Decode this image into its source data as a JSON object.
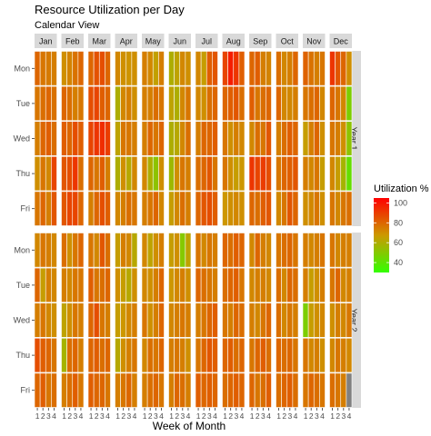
{
  "chart_data": {
    "type": "heatmap",
    "title": "Resource Utilization per Day",
    "subtitle": "Calendar View",
    "xlabel": "Week of Month",
    "ylabel": "",
    "months": [
      "Jan",
      "Feb",
      "Mar",
      "Apr",
      "May",
      "Jun",
      "Jul",
      "Aug",
      "Sep",
      "Oct",
      "Nov",
      "Dec"
    ],
    "weekdays": [
      "Mon",
      "Tue",
      "Wed",
      "Thu",
      "Fri"
    ],
    "weeks": [
      "1",
      "2",
      "3",
      "4"
    ],
    "facets": [
      "Year 1",
      "Year 2"
    ],
    "legend": {
      "title": "Utilization %",
      "position": "right",
      "range": [
        30,
        105
      ],
      "ticks": [
        40,
        60,
        80,
        100
      ],
      "low_color": "#33ff00",
      "mid_color": "#cc9900",
      "high_color": "#ff0000"
    },
    "na_color": "#808080",
    "grid": false,
    "values_note": "values[year][weekday][month][week], utilization %, estimated from fill color",
    "values": [
      [
        [
          [
            80,
            76,
            75,
            74
          ],
          [
            70,
            73,
            77,
            80
          ],
          [
            80,
            85,
            86,
            80
          ],
          [
            72,
            70,
            69,
            70
          ],
          [
            74,
            72,
            65,
            74
          ],
          [
            60,
            64,
            72,
            70
          ],
          [
            72,
            66,
            82,
            84
          ],
          [
            88,
            98,
            92,
            82
          ],
          [
            80,
            82,
            74,
            73
          ],
          [
            78,
            72,
            74,
            80
          ],
          [
            81,
            77,
            74,
            76
          ],
          [
            92,
            84,
            80,
            70
          ]
        ],
        [
          [
            76,
            78,
            80,
            77
          ],
          [
            80,
            78,
            74,
            76
          ],
          [
            86,
            88,
            82,
            80
          ],
          [
            60,
            72,
            74,
            70
          ],
          [
            74,
            74,
            78,
            76
          ],
          [
            64,
            60,
            72,
            76
          ],
          [
            72,
            70,
            78,
            80
          ],
          [
            80,
            82,
            84,
            78
          ],
          [
            82,
            76,
            78,
            80
          ],
          [
            80,
            72,
            72,
            74
          ],
          [
            76,
            78,
            80,
            72
          ],
          [
            80,
            76,
            72,
            48
          ]
        ],
        [
          [
            74,
            80,
            82,
            78
          ],
          [
            82,
            80,
            86,
            82
          ],
          [
            88,
            92,
            94,
            90
          ],
          [
            64,
            76,
            76,
            74
          ],
          [
            74,
            80,
            76,
            80
          ],
          [
            60,
            62,
            72,
            78
          ],
          [
            74,
            80,
            80,
            82
          ],
          [
            76,
            70,
            74,
            72
          ],
          [
            72,
            78,
            76,
            84
          ],
          [
            74,
            78,
            82,
            80
          ],
          [
            66,
            74,
            80,
            70
          ],
          [
            76,
            74,
            70,
            52
          ]
        ],
        [
          [
            70,
            76,
            72,
            88
          ],
          [
            84,
            86,
            92,
            78
          ],
          [
            80,
            76,
            82,
            74
          ],
          [
            60,
            70,
            62,
            72
          ],
          [
            72,
            60,
            52,
            70
          ],
          [
            56,
            70,
            76,
            74
          ],
          [
            78,
            80,
            84,
            76
          ],
          [
            76,
            70,
            66,
            68
          ],
          [
            92,
            88,
            90,
            86
          ],
          [
            76,
            80,
            82,
            84
          ],
          [
            74,
            72,
            76,
            66
          ],
          [
            72,
            66,
            58,
            42
          ]
        ],
        [
          [
            76,
            80,
            74,
            84
          ],
          [
            84,
            88,
            88,
            80
          ],
          [
            74,
            80,
            86,
            82
          ],
          [
            72,
            74,
            78,
            76
          ],
          [
            74,
            76,
            80,
            72
          ],
          [
            66,
            72,
            78,
            74
          ],
          [
            80,
            84,
            86,
            82
          ],
          [
            68,
            70,
            72,
            70
          ],
          [
            80,
            78,
            82,
            84
          ],
          [
            72,
            76,
            84,
            80
          ],
          [
            70,
            72,
            76,
            70
          ],
          [
            76,
            72,
            76,
            78
          ]
        ]
      ],
      [
        [
          [
            72,
            76,
            74,
            72
          ],
          [
            78,
            70,
            76,
            80
          ],
          [
            76,
            72,
            84,
            78
          ],
          [
            66,
            74,
            72,
            62
          ],
          [
            72,
            64,
            70,
            74
          ],
          [
            66,
            70,
            50,
            64
          ],
          [
            76,
            72,
            76,
            74
          ],
          [
            80,
            78,
            82,
            80
          ],
          [
            72,
            80,
            74,
            72
          ],
          [
            76,
            78,
            80,
            76
          ],
          [
            74,
            72,
            74,
            76
          ],
          [
            76,
            72,
            74,
            74
          ]
        ],
        [
          [
            80,
            66,
            74,
            72
          ],
          [
            74,
            72,
            76,
            76
          ],
          [
            82,
            76,
            78,
            80
          ],
          [
            70,
            66,
            62,
            70
          ],
          [
            72,
            70,
            74,
            80
          ],
          [
            68,
            72,
            74,
            70
          ],
          [
            80,
            78,
            76,
            74
          ],
          [
            78,
            80,
            82,
            76
          ],
          [
            72,
            74,
            74,
            72
          ],
          [
            78,
            72,
            80,
            78
          ],
          [
            74,
            66,
            70,
            74
          ],
          [
            76,
            80,
            72,
            74
          ]
        ],
        [
          [
            74,
            76,
            72,
            70
          ],
          [
            64,
            70,
            76,
            74
          ],
          [
            80,
            86,
            76,
            74
          ],
          [
            66,
            68,
            72,
            74
          ],
          [
            76,
            70,
            74,
            80
          ],
          [
            72,
            74,
            76,
            74
          ],
          [
            74,
            76,
            80,
            82
          ],
          [
            76,
            74,
            80,
            78
          ],
          [
            74,
            72,
            76,
            80
          ],
          [
            78,
            72,
            76,
            74
          ],
          [
            48,
            66,
            70,
            72
          ],
          [
            70,
            74,
            72,
            76
          ]
        ],
        [
          [
            86,
            82,
            80,
            76
          ],
          [
            58,
            78,
            80,
            74
          ],
          [
            80,
            82,
            78,
            80
          ],
          [
            62,
            70,
            74,
            76
          ],
          [
            72,
            78,
            76,
            80
          ],
          [
            74,
            76,
            74,
            70
          ],
          [
            76,
            80,
            84,
            82
          ],
          [
            80,
            82,
            78,
            80
          ],
          [
            76,
            80,
            82,
            78
          ],
          [
            80,
            78,
            80,
            76
          ],
          [
            76,
            72,
            74,
            70
          ],
          [
            72,
            76,
            74,
            72
          ]
        ],
        [
          [
            80,
            82,
            76,
            78
          ],
          [
            74,
            78,
            82,
            76
          ],
          [
            82,
            80,
            80,
            76
          ],
          [
            74,
            76,
            80,
            74
          ],
          [
            74,
            78,
            80,
            76
          ],
          [
            74,
            80,
            78,
            74
          ],
          [
            82,
            80,
            82,
            80
          ],
          [
            78,
            80,
            82,
            80
          ],
          [
            80,
            76,
            78,
            82
          ],
          [
            78,
            80,
            82,
            78
          ],
          [
            76,
            80,
            78,
            76
          ],
          [
            78,
            76,
            74,
            null
          ]
        ]
      ]
    ]
  }
}
